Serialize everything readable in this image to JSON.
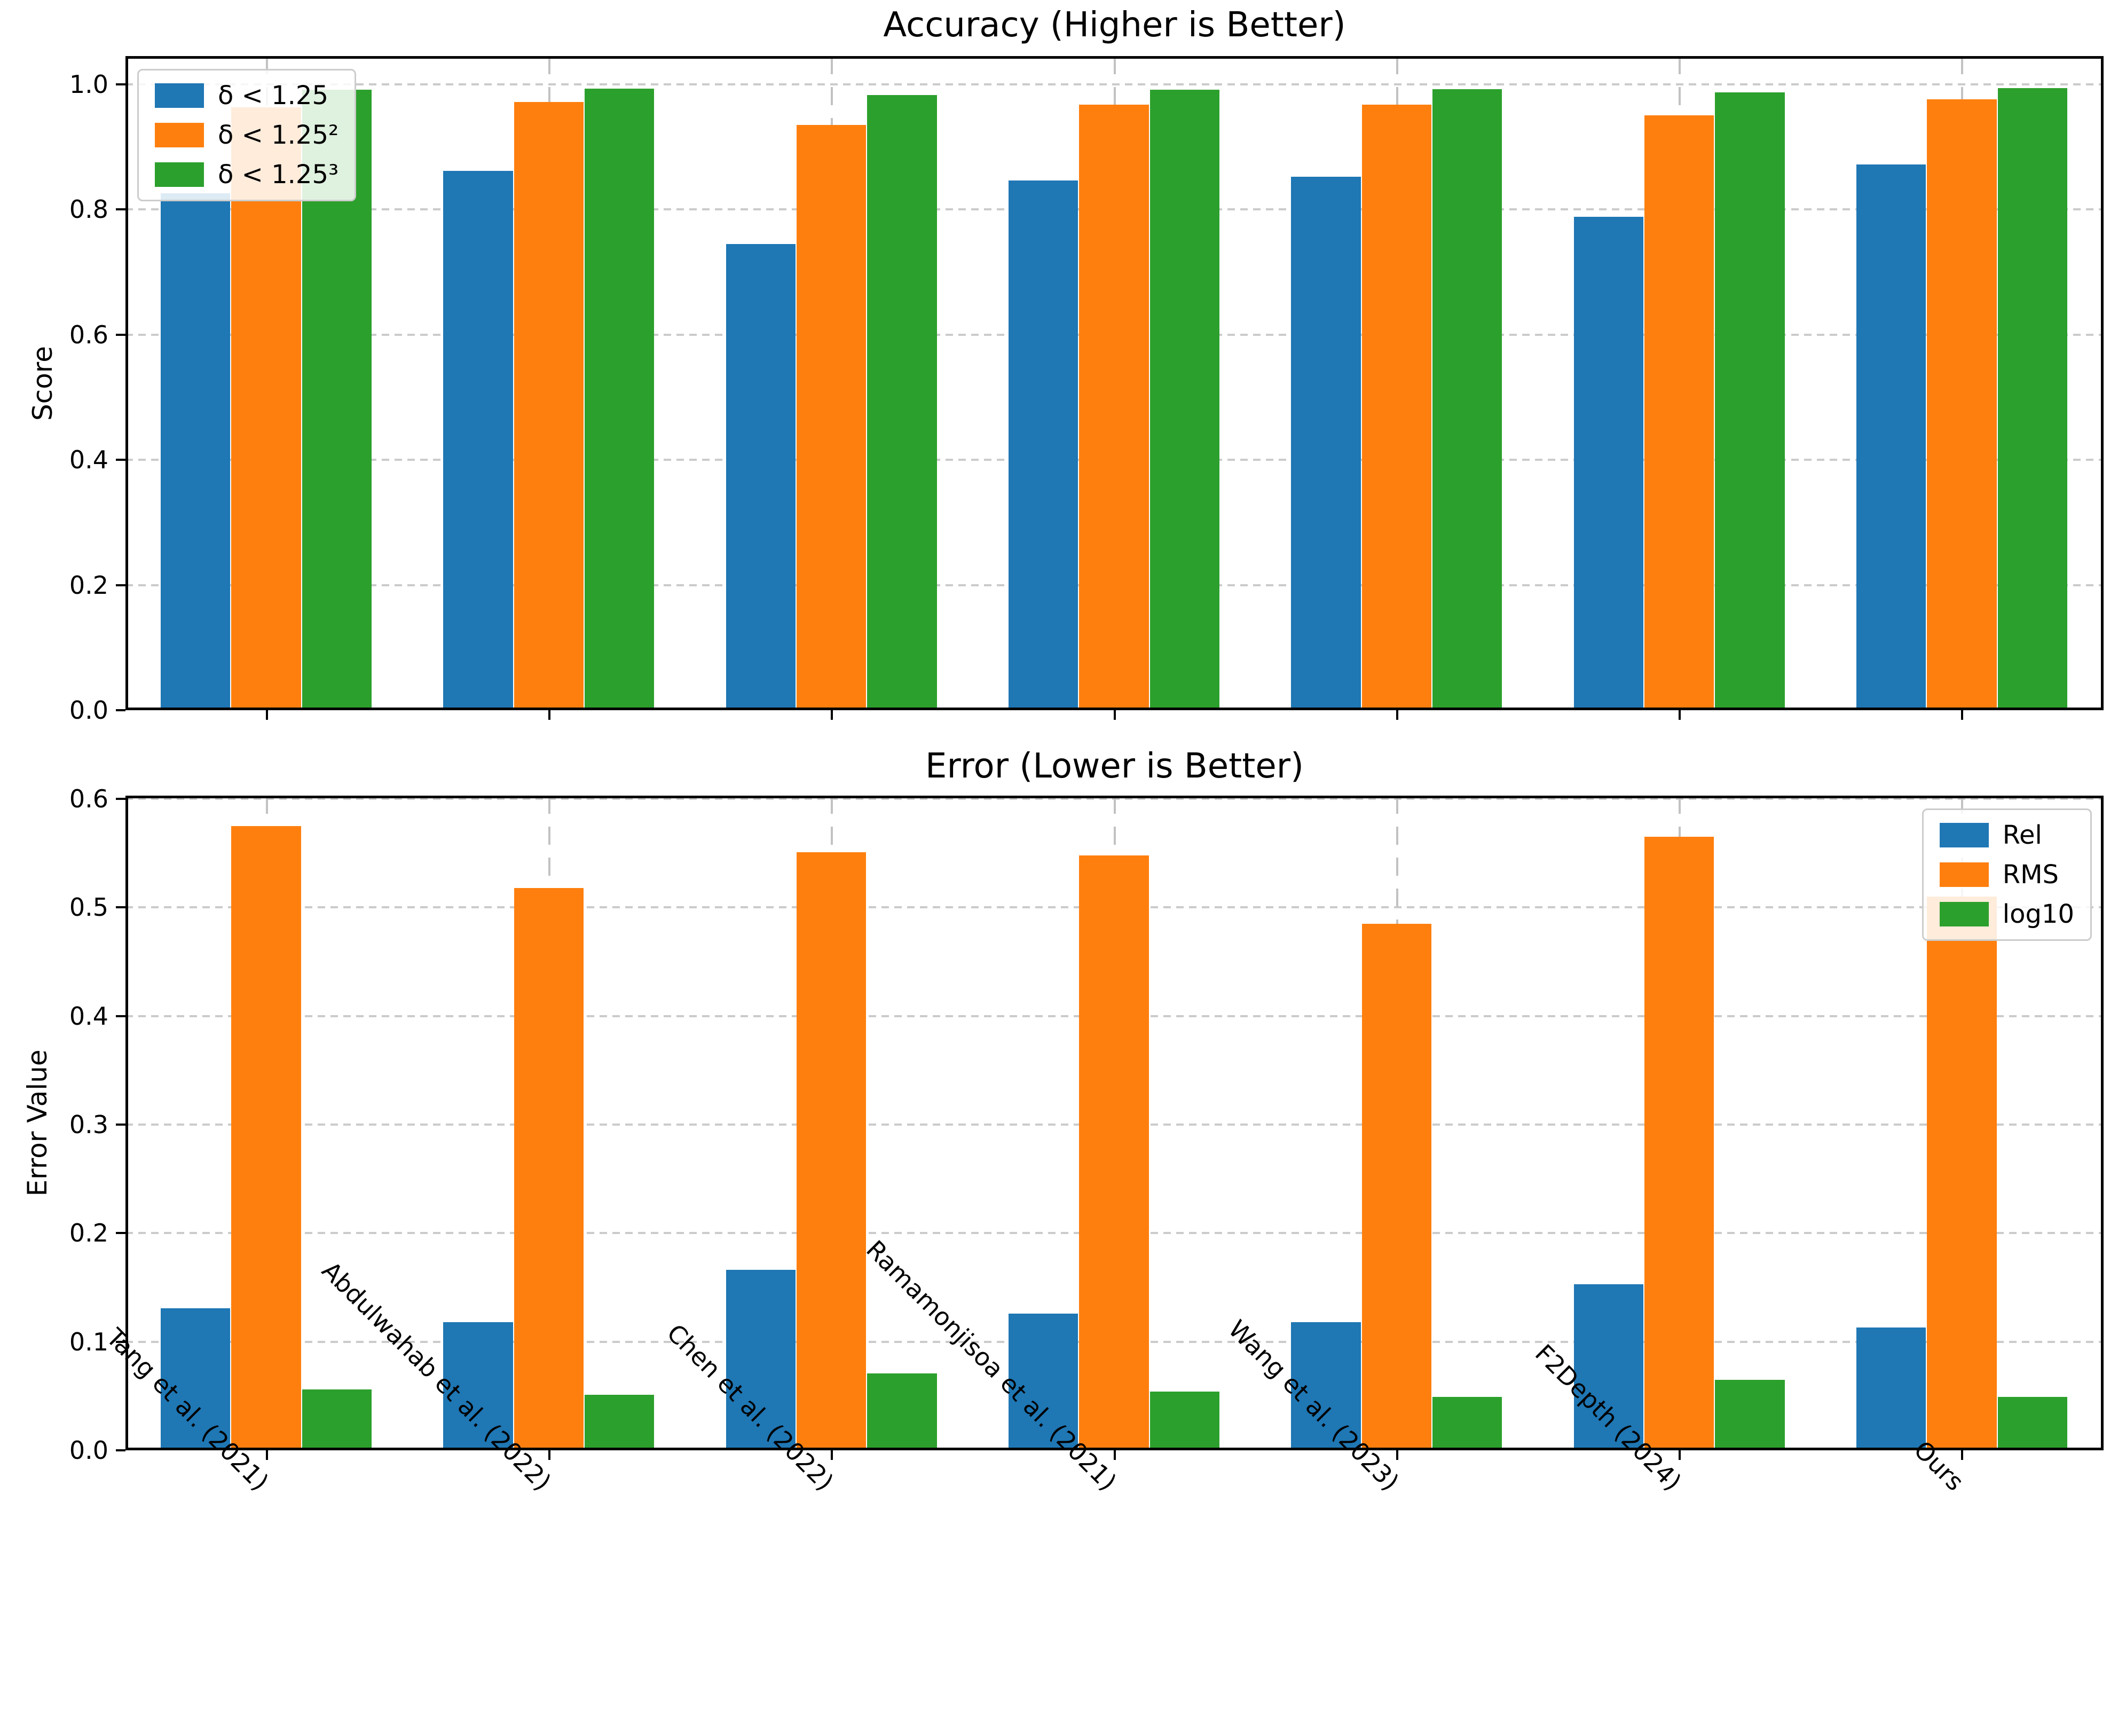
{
  "page": {
    "background": "#ffffff"
  },
  "colors": {
    "blue": "#1f77b4",
    "orange": "#ff7f0e",
    "green": "#2ca02c",
    "grid": "#cbcbcb",
    "spine": "#000000"
  },
  "categories": [
    "Tang et al. (2021)",
    "Abdulwahab et al. (2022)",
    "Chen et al. (2022)",
    "Ramamonjisoa et al. (2021)",
    "Wang et al. (2023)",
    "F2Depth (2024)",
    "Ours"
  ],
  "chart_data": [
    {
      "type": "bar",
      "title": "Accuracy (Higher is Better)",
      "xlabel": "",
      "ylabel": "Score",
      "ylim": [
        0,
        1.045
      ],
      "yticks": [
        "0.0",
        "0.2",
        "0.4",
        "0.6",
        "0.8",
        "1.0"
      ],
      "grid": true,
      "legend_position": "upper-left",
      "categories": [
        "Tang et al. (2021)",
        "Abdulwahab et al. (2022)",
        "Chen et al. (2022)",
        "Ramamonjisoa et al. (2021)",
        "Wang et al. (2023)",
        "F2Depth (2024)",
        "Ours"
      ],
      "series": [
        {
          "name": "δ < 1.25",
          "color_key": "blue",
          "values": [
            0.826,
            0.862,
            0.745,
            0.846,
            0.852,
            0.788,
            0.872
          ]
        },
        {
          "name": "δ < 1.25²",
          "color_key": "orange",
          "values": [
            0.963,
            0.972,
            0.935,
            0.967,
            0.967,
            0.95,
            0.976
          ]
        },
        {
          "name": "δ < 1.25³",
          "color_key": "green",
          "values": [
            0.991,
            0.993,
            0.983,
            0.991,
            0.992,
            0.987,
            0.994
          ]
        }
      ]
    },
    {
      "type": "bar",
      "title": "Error (Lower is Better)",
      "xlabel": "",
      "ylabel": "Error Value",
      "ylim": [
        0,
        0.603
      ],
      "yticks": [
        "0.0",
        "0.1",
        "0.2",
        "0.3",
        "0.4",
        "0.5",
        "0.6"
      ],
      "grid": true,
      "legend_position": "upper-right",
      "categories": [
        "Tang et al. (2021)",
        "Abdulwahab et al. (2022)",
        "Chen et al. (2022)",
        "Ramamonjisoa et al. (2021)",
        "Wang et al. (2023)",
        "F2Depth (2024)",
        "Ours"
      ],
      "series": [
        {
          "name": "Rel",
          "color_key": "blue",
          "values": [
            0.131,
            0.118,
            0.166,
            0.126,
            0.118,
            0.153,
            0.113
          ]
        },
        {
          "name": "RMS",
          "color_key": "orange",
          "values": [
            0.575,
            0.518,
            0.551,
            0.548,
            0.485,
            0.565,
            0.51
          ]
        },
        {
          "name": "log10",
          "color_key": "green",
          "values": [
            0.056,
            0.051,
            0.071,
            0.054,
            0.049,
            0.065,
            0.049
          ]
        }
      ]
    }
  ]
}
